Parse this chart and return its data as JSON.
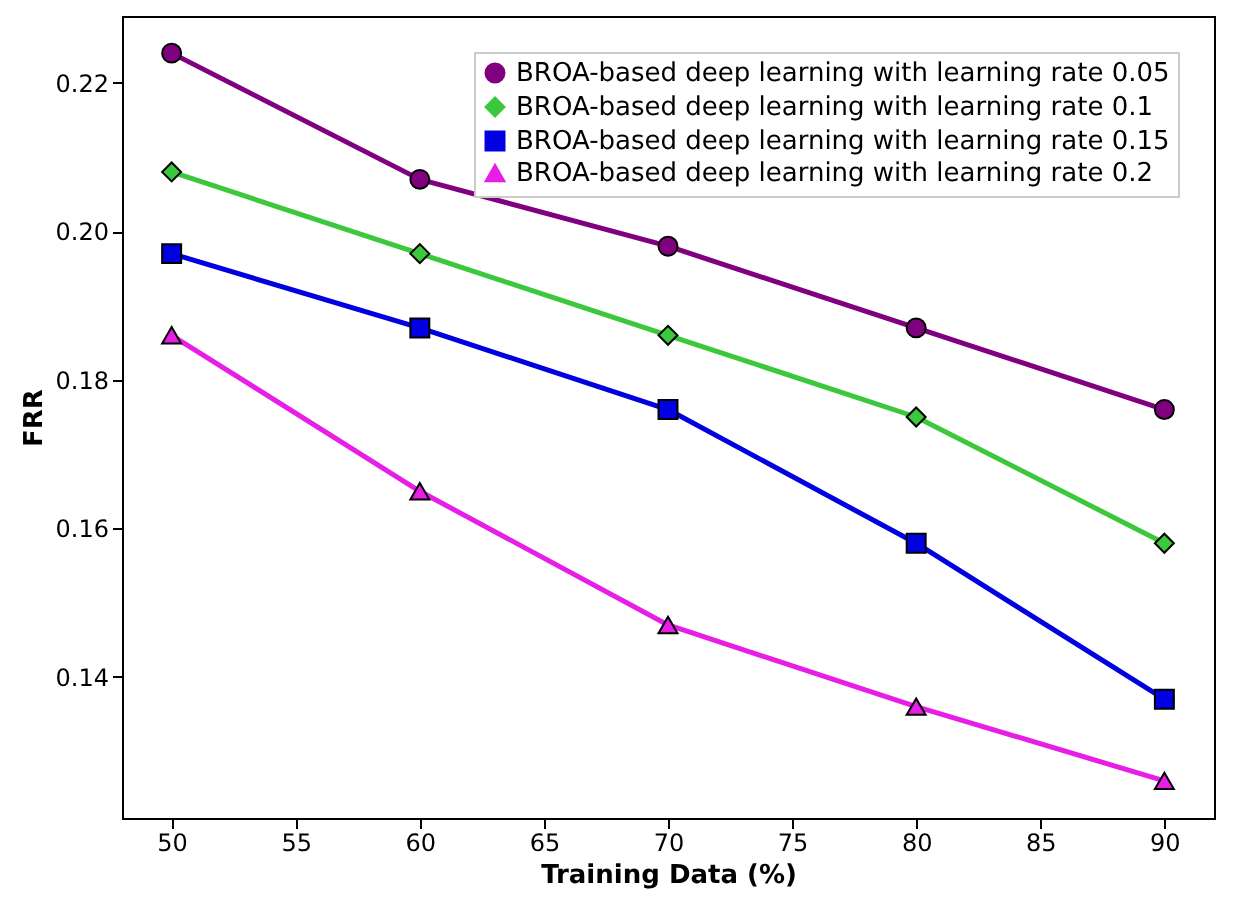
{
  "chart_data": {
    "type": "line",
    "xlabel": "Training Data (%)",
    "ylabel": "FRR",
    "x": [
      50,
      60,
      70,
      80,
      90
    ],
    "xlim": [
      48,
      92
    ],
    "xticks": [
      50,
      55,
      60,
      65,
      70,
      75,
      80,
      85,
      90
    ],
    "ylim": [
      0.121,
      0.229
    ],
    "yticks": [
      {
        "value": 0.14,
        "label": "0.14"
      },
      {
        "value": 0.16,
        "label": "0.16"
      },
      {
        "value": 0.18,
        "label": "0.18"
      },
      {
        "value": 0.2,
        "label": "0.20"
      },
      {
        "value": 0.22,
        "label": "0.22"
      }
    ],
    "grid": false,
    "legend": "top right",
    "line_style": "solid",
    "series": [
      {
        "name": "BROA-based deep learning with learning rate 0.05",
        "color": "#800080",
        "marker": "circle",
        "values": [
          0.224,
          0.207,
          0.198,
          0.187,
          0.176
        ]
      },
      {
        "name": "BROA-based deep learning with learning rate 0.1",
        "color": "#3cc83c",
        "marker": "diamond",
        "values": [
          0.208,
          0.197,
          0.186,
          0.175,
          0.158
        ]
      },
      {
        "name": "BROA-based deep learning with learning rate 0.15",
        "color": "#0000e0",
        "marker": "square",
        "values": [
          0.197,
          0.187,
          0.176,
          0.158,
          0.137
        ]
      },
      {
        "name": "BROA-based deep learning with learning rate 0.2",
        "color": "#e61ee6",
        "marker": "triangle",
        "values": [
          0.186,
          0.165,
          0.147,
          0.136,
          0.126
        ]
      }
    ]
  }
}
